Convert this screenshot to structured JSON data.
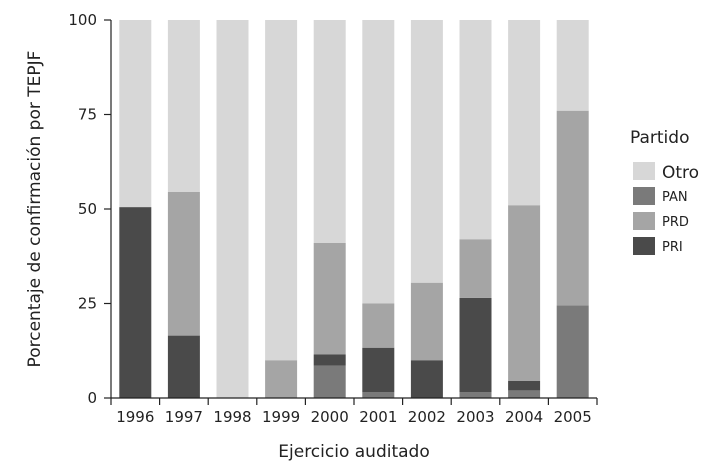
{
  "chart_data": {
    "type": "bar",
    "stacked": true,
    "categories": [
      "1996",
      "1997",
      "1998",
      "1999",
      "2000",
      "2001",
      "2002",
      "2003",
      "2004",
      "2005"
    ],
    "series": [
      {
        "name": "PAN",
        "color": "#7a7a7a",
        "values": [
          0,
          0,
          0,
          0,
          8.5,
          1.5,
          0,
          1.5,
          2,
          24.5
        ]
      },
      {
        "name": "PRI",
        "color": "#4a4a4a",
        "values": [
          50.5,
          16.5,
          0,
          0,
          3,
          11.8,
          10,
          25,
          2.5,
          0
        ]
      },
      {
        "name": "PRD",
        "color": "#a5a5a5",
        "values": [
          0,
          38,
          0,
          10,
          29.5,
          11.7,
          20.5,
          15.5,
          46.5,
          51.5
        ]
      },
      {
        "name": "Otro",
        "color": "#d7d7d7",
        "values": [
          49.5,
          45.5,
          100,
          90,
          59,
          75,
          69.5,
          58,
          49,
          24
        ]
      }
    ],
    "xlabel": "Ejercicio auditado",
    "ylabel": "Porcentaje de confirmación por TEPJF",
    "ylim": [
      0,
      100
    ],
    "yticks": [
      "0",
      "25",
      "50",
      "75",
      "100"
    ],
    "grid": false,
    "legend": {
      "title": "Partido",
      "placement": "right",
      "items": [
        {
          "label": "Otro",
          "series": "Otro"
        },
        {
          "label": "PAN",
          "series": "PAN"
        },
        {
          "label": "PRD",
          "series": "PRD"
        },
        {
          "label": "PRI",
          "series": "PRI"
        }
      ]
    }
  }
}
